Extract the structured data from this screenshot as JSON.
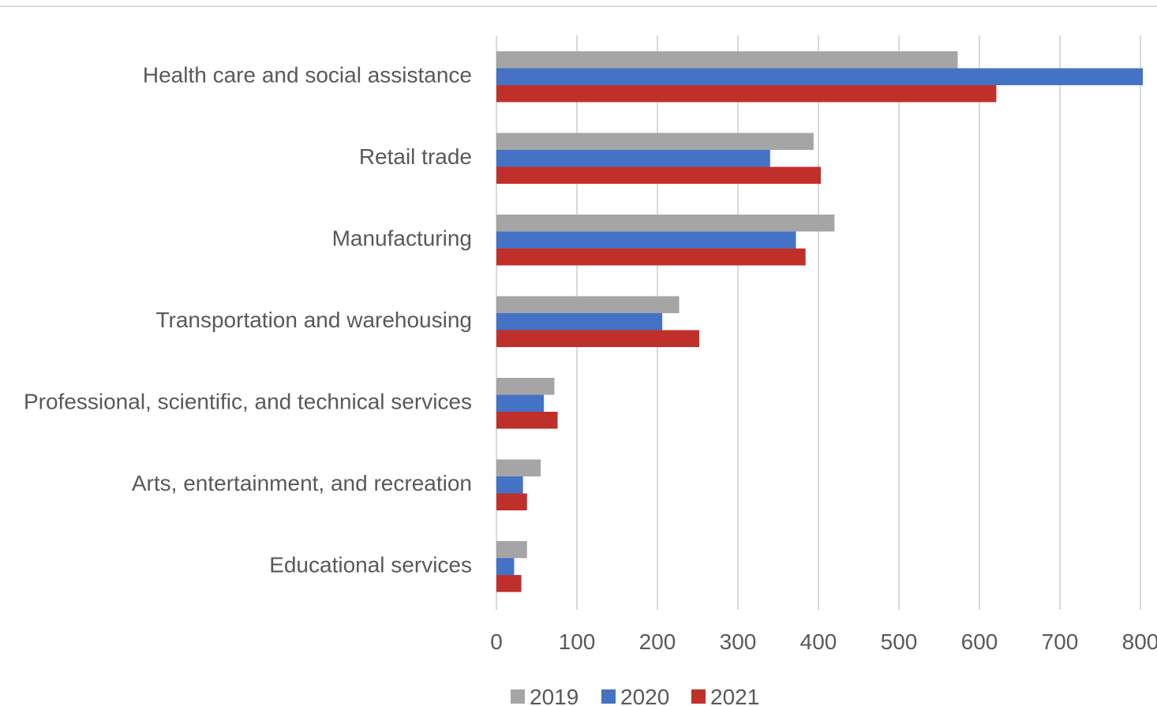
{
  "chart_data": {
    "type": "bar",
    "orientation": "horizontal",
    "title": "",
    "xlabel": "",
    "ylabel": "",
    "categories": [
      "Health care and social assistance",
      "Retail trade",
      "Manufacturing",
      "Transportation and warehousing",
      "Professional, scientific, and technical services",
      "Arts, entertainment, and recreation",
      "Educational services"
    ],
    "series": [
      {
        "name": "2019",
        "color": "#a5a5a5",
        "values": [
          573,
          394,
          420,
          227,
          72,
          55,
          38
        ]
      },
      {
        "name": "2020",
        "color": "#4472c4",
        "values": [
          803,
          340,
          372,
          206,
          59,
          33,
          22
        ]
      },
      {
        "name": "2021",
        "color": "#c0302b",
        "values": [
          621,
          403,
          384,
          252,
          76,
          38,
          31
        ]
      }
    ],
    "xlim": [
      0,
      800
    ],
    "xticks": [
      "0",
      "100",
      "200",
      "300",
      "400",
      "500",
      "600",
      "700",
      "800"
    ],
    "grid": true,
    "legend": "bottom"
  }
}
